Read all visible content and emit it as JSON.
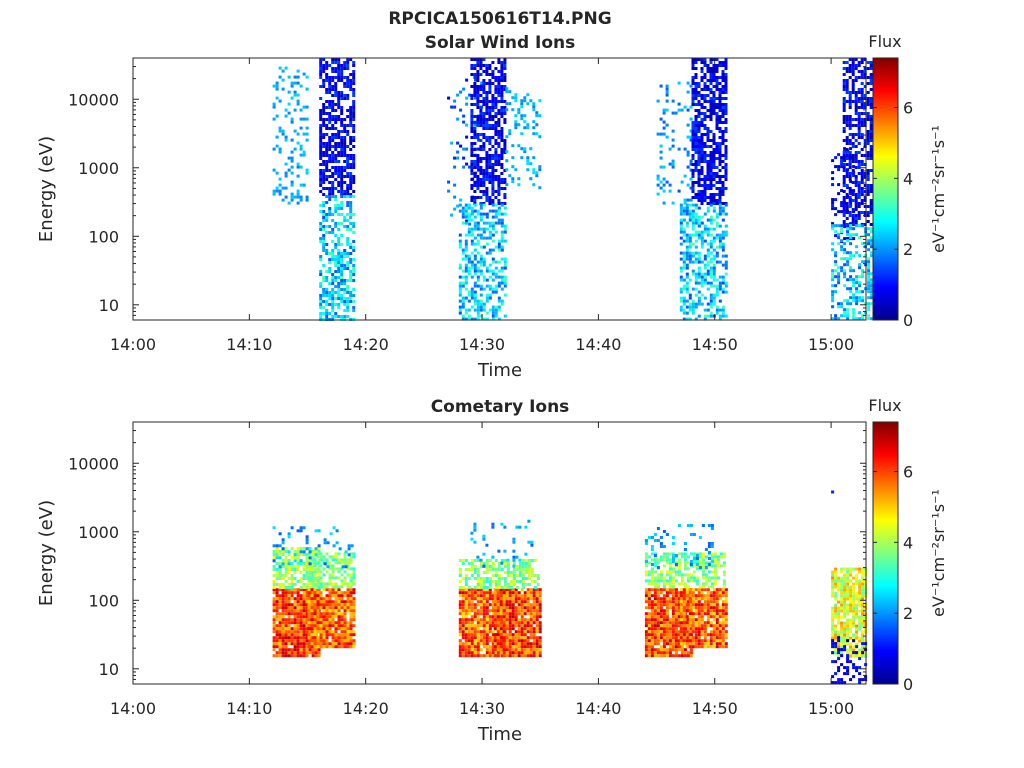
{
  "figure_title": "RPCICA150616T14.PNG",
  "colormap": [
    "#00008f",
    "#0000ff",
    "#0080ff",
    "#00ffff",
    "#80ff80",
    "#ffff00",
    "#ff8000",
    "#ff0000",
    "#800000"
  ],
  "chart_data": [
    {
      "type": "heatmap",
      "title": "Solar Wind Ions",
      "xlabel": "Time",
      "ylabel": "Energy (eV)",
      "x_ticks": [
        "14:00",
        "14:10",
        "14:20",
        "14:30",
        "14:40",
        "14:50",
        "15:00"
      ],
      "y_ticks": [
        "10",
        "100",
        "1000",
        "10000"
      ],
      "x_range": [
        "14:00",
        "15:03"
      ],
      "y_range": [
        6,
        40000
      ],
      "y_scale": "log",
      "colorbar": {
        "label": "Flux",
        "unit": "eV⁻¹cm⁻²sr⁻¹s⁻¹",
        "ticks": [
          "0",
          "2",
          "4",
          "6"
        ],
        "range": [
          0,
          7.4
        ]
      },
      "clusters": [
        {
          "t_start": "14:12",
          "t_end": "14:14",
          "e_min": 300,
          "e_max": 30000,
          "flux": [
            1.8,
            2.5
          ],
          "density": 0.25
        },
        {
          "t_start": "14:16",
          "t_end": "14:18",
          "e_min": 400,
          "e_max": 40000,
          "flux": [
            0.3,
            1.4
          ],
          "density": 0.65
        },
        {
          "t_start": "14:16",
          "t_end": "14:18",
          "e_min": 6,
          "e_max": 400,
          "flux": [
            1.5,
            3.3
          ],
          "density": 0.55
        },
        {
          "t_start": "14:27",
          "t_end": "14:29",
          "e_min": 150,
          "e_max": 20000,
          "flux": [
            0.5,
            2.5
          ],
          "density": 0.12
        },
        {
          "t_start": "14:29",
          "t_end": "14:31",
          "e_min": 300,
          "e_max": 40000,
          "flux": [
            0.3,
            1.4
          ],
          "density": 0.65
        },
        {
          "t_start": "14:28",
          "t_end": "14:31",
          "e_min": 6,
          "e_max": 300,
          "flux": [
            1.5,
            3.3
          ],
          "density": 0.5
        },
        {
          "t_start": "14:32",
          "t_end": "14:34",
          "e_min": 500,
          "e_max": 15000,
          "flux": [
            1.8,
            2.6
          ],
          "density": 0.18
        },
        {
          "t_start": "14:45",
          "t_end": "14:47",
          "e_min": 300,
          "e_max": 20000,
          "flux": [
            1.5,
            2.5
          ],
          "density": 0.15
        },
        {
          "t_start": "14:48",
          "t_end": "14:50",
          "e_min": 300,
          "e_max": 40000,
          "flux": [
            0.3,
            1.4
          ],
          "density": 0.65
        },
        {
          "t_start": "14:47",
          "t_end": "14:50",
          "e_min": 6,
          "e_max": 300,
          "flux": [
            1.5,
            3.4
          ],
          "density": 0.55
        },
        {
          "t_start": "15:00",
          "t_end": "15:01",
          "e_min": 80,
          "e_max": 2000,
          "flux": [
            0.3,
            1.2
          ],
          "density": 0.3
        },
        {
          "t_start": "15:01",
          "t_end": "15:03",
          "e_min": 150,
          "e_max": 40000,
          "flux": [
            0.3,
            1.4
          ],
          "density": 0.6
        },
        {
          "t_start": "15:00",
          "t_end": "15:03",
          "e_min": 6,
          "e_max": 150,
          "flux": [
            1.5,
            3.3
          ],
          "density": 0.45
        }
      ]
    },
    {
      "type": "heatmap",
      "title": "Cometary Ions",
      "xlabel": "Time",
      "ylabel": "Energy (eV)",
      "x_ticks": [
        "14:00",
        "14:10",
        "14:20",
        "14:30",
        "14:40",
        "14:50",
        "15:00"
      ],
      "y_ticks": [
        "10",
        "100",
        "1000",
        "10000"
      ],
      "x_range": [
        "14:00",
        "15:03"
      ],
      "y_range": [
        6,
        40000
      ],
      "y_scale": "log",
      "colorbar": {
        "label": "Flux",
        "unit": "eV⁻¹cm⁻²sr⁻¹s⁻¹",
        "ticks": [
          "0",
          "2",
          "4",
          "6"
        ],
        "range": [
          0,
          7.4
        ]
      },
      "clusters": [
        {
          "t_start": "14:12",
          "t_end": "14:15",
          "e_min": 15,
          "e_max": 150,
          "flux": [
            5.0,
            7.0
          ],
          "density": 0.95
        },
        {
          "t_start": "14:12",
          "t_end": "14:15",
          "e_min": 150,
          "e_max": 600,
          "flux": [
            3.0,
            4.8
          ],
          "density": 0.7
        },
        {
          "t_start": "14:15",
          "t_end": "14:18",
          "e_min": 20,
          "e_max": 150,
          "flux": [
            4.8,
            6.8
          ],
          "density": 0.9
        },
        {
          "t_start": "14:15",
          "t_end": "14:18",
          "e_min": 150,
          "e_max": 500,
          "flux": [
            3.0,
            4.5
          ],
          "density": 0.65
        },
        {
          "t_start": "14:12",
          "t_end": "14:18",
          "e_min": 300,
          "e_max": 1200,
          "flux": [
            1.6,
            2.6
          ],
          "density": 0.15
        },
        {
          "t_start": "14:28",
          "t_end": "14:31",
          "e_min": 15,
          "e_max": 150,
          "flux": [
            4.8,
            6.8
          ],
          "density": 0.92
        },
        {
          "t_start": "14:31",
          "t_end": "14:34",
          "e_min": 15,
          "e_max": 150,
          "flux": [
            5.0,
            7.0
          ],
          "density": 0.95
        },
        {
          "t_start": "14:28",
          "t_end": "14:34",
          "e_min": 150,
          "e_max": 400,
          "flux": [
            3.0,
            4.5
          ],
          "density": 0.6
        },
        {
          "t_start": "14:29",
          "t_end": "14:34",
          "e_min": 300,
          "e_max": 1500,
          "flux": [
            1.6,
            2.6
          ],
          "density": 0.12
        },
        {
          "t_start": "14:44",
          "t_end": "14:47",
          "e_min": 15,
          "e_max": 150,
          "flux": [
            5.0,
            7.0
          ],
          "density": 0.93
        },
        {
          "t_start": "14:47",
          "t_end": "14:50",
          "e_min": 20,
          "e_max": 150,
          "flux": [
            4.8,
            6.8
          ],
          "density": 0.9
        },
        {
          "t_start": "14:44",
          "t_end": "14:50",
          "e_min": 150,
          "e_max": 500,
          "flux": [
            3.0,
            4.5
          ],
          "density": 0.65
        },
        {
          "t_start": "14:44",
          "t_end": "14:49",
          "e_min": 300,
          "e_max": 1300,
          "flux": [
            1.6,
            2.6
          ],
          "density": 0.15
        },
        {
          "t_start": "15:00",
          "t_end": "15:02",
          "e_min": 15,
          "e_max": 300,
          "flux": [
            3.5,
            5.5
          ],
          "density": 0.8
        },
        {
          "t_start": "15:00",
          "t_end": "15:02",
          "e_min": 6,
          "e_max": 30,
          "flux": [
            0.3,
            1.2
          ],
          "density": 0.4
        }
      ],
      "points": [
        {
          "t": "15:00",
          "e": 4000,
          "flux": 1.2
        }
      ]
    }
  ]
}
